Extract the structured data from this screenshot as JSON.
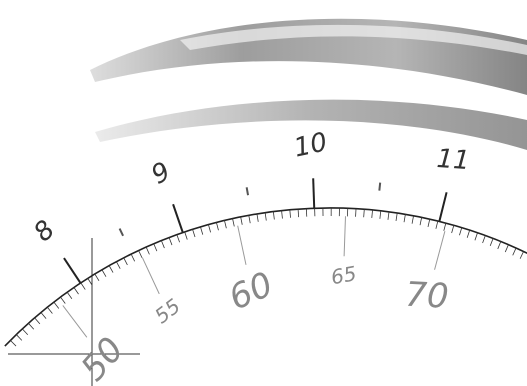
{
  "scene": {
    "subject": "close-up of an analog gauge scale",
    "colors": {
      "background": "#ffffff",
      "ink": "#222222",
      "grey_ink": "#888888",
      "band": "#9a9a9a"
    }
  },
  "scale": {
    "outer_labels": [
      "8",
      "9",
      "10",
      "11"
    ],
    "inner_labels": [
      "50",
      "55",
      "60",
      "65",
      "70"
    ]
  }
}
